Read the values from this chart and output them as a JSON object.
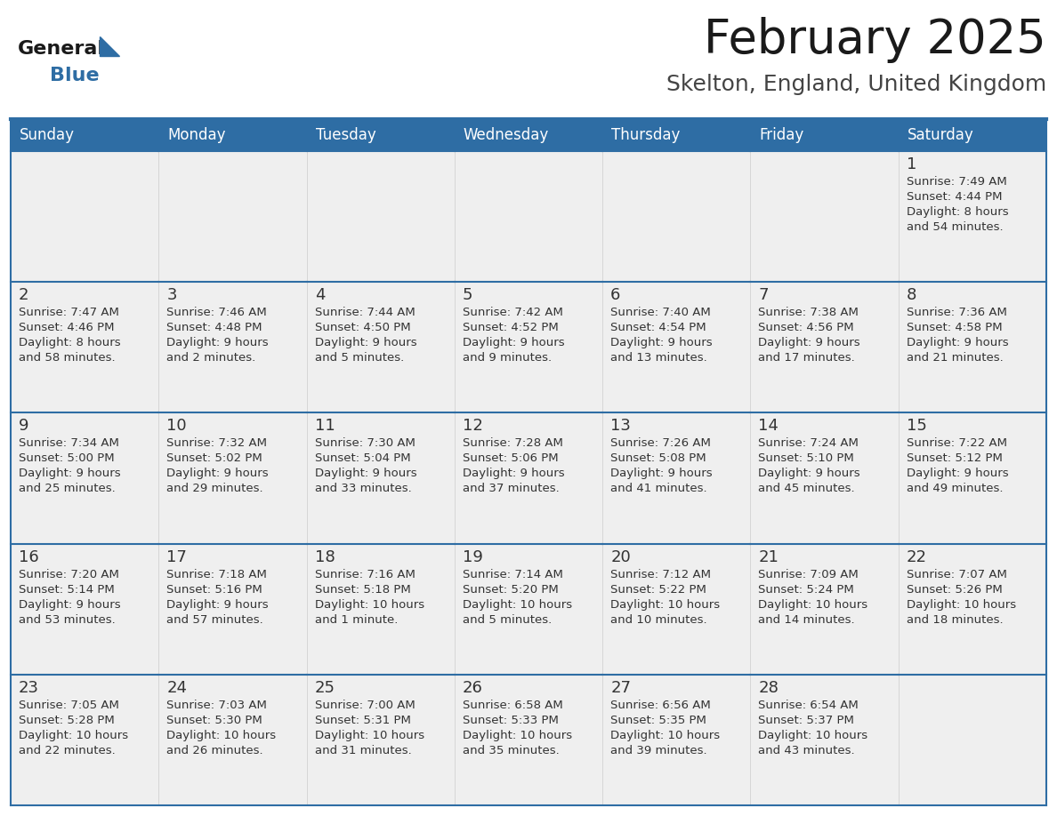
{
  "title": "February 2025",
  "subtitle": "Skelton, England, United Kingdom",
  "days_of_week": [
    "Sunday",
    "Monday",
    "Tuesday",
    "Wednesday",
    "Thursday",
    "Friday",
    "Saturday"
  ],
  "header_bg": "#2E6DA4",
  "header_text": "#FFFFFF",
  "cell_bg_light": "#EFEFEF",
  "cell_bg_white": "#FFFFFF",
  "cell_text": "#333333",
  "border_color": "#2E6DA4",
  "title_color": "#1A1A1A",
  "subtitle_color": "#444444",
  "logo_general_color": "#1A1A1A",
  "logo_blue_color": "#2E6DA4",
  "figsize": [
    11.88,
    9.18
  ],
  "dpi": 100,
  "calendar": [
    [
      null,
      null,
      null,
      null,
      null,
      null,
      1
    ],
    [
      2,
      3,
      4,
      5,
      6,
      7,
      8
    ],
    [
      9,
      10,
      11,
      12,
      13,
      14,
      15
    ],
    [
      16,
      17,
      18,
      19,
      20,
      21,
      22
    ],
    [
      23,
      24,
      25,
      26,
      27,
      28,
      null
    ]
  ],
  "cell_data": {
    "1": [
      "Sunrise: 7:49 AM",
      "Sunset: 4:44 PM",
      "Daylight: 8 hours",
      "and 54 minutes."
    ],
    "2": [
      "Sunrise: 7:47 AM",
      "Sunset: 4:46 PM",
      "Daylight: 8 hours",
      "and 58 minutes."
    ],
    "3": [
      "Sunrise: 7:46 AM",
      "Sunset: 4:48 PM",
      "Daylight: 9 hours",
      "and 2 minutes."
    ],
    "4": [
      "Sunrise: 7:44 AM",
      "Sunset: 4:50 PM",
      "Daylight: 9 hours",
      "and 5 minutes."
    ],
    "5": [
      "Sunrise: 7:42 AM",
      "Sunset: 4:52 PM",
      "Daylight: 9 hours",
      "and 9 minutes."
    ],
    "6": [
      "Sunrise: 7:40 AM",
      "Sunset: 4:54 PM",
      "Daylight: 9 hours",
      "and 13 minutes."
    ],
    "7": [
      "Sunrise: 7:38 AM",
      "Sunset: 4:56 PM",
      "Daylight: 9 hours",
      "and 17 minutes."
    ],
    "8": [
      "Sunrise: 7:36 AM",
      "Sunset: 4:58 PM",
      "Daylight: 9 hours",
      "and 21 minutes."
    ],
    "9": [
      "Sunrise: 7:34 AM",
      "Sunset: 5:00 PM",
      "Daylight: 9 hours",
      "and 25 minutes."
    ],
    "10": [
      "Sunrise: 7:32 AM",
      "Sunset: 5:02 PM",
      "Daylight: 9 hours",
      "and 29 minutes."
    ],
    "11": [
      "Sunrise: 7:30 AM",
      "Sunset: 5:04 PM",
      "Daylight: 9 hours",
      "and 33 minutes."
    ],
    "12": [
      "Sunrise: 7:28 AM",
      "Sunset: 5:06 PM",
      "Daylight: 9 hours",
      "and 37 minutes."
    ],
    "13": [
      "Sunrise: 7:26 AM",
      "Sunset: 5:08 PM",
      "Daylight: 9 hours",
      "and 41 minutes."
    ],
    "14": [
      "Sunrise: 7:24 AM",
      "Sunset: 5:10 PM",
      "Daylight: 9 hours",
      "and 45 minutes."
    ],
    "15": [
      "Sunrise: 7:22 AM",
      "Sunset: 5:12 PM",
      "Daylight: 9 hours",
      "and 49 minutes."
    ],
    "16": [
      "Sunrise: 7:20 AM",
      "Sunset: 5:14 PM",
      "Daylight: 9 hours",
      "and 53 minutes."
    ],
    "17": [
      "Sunrise: 7:18 AM",
      "Sunset: 5:16 PM",
      "Daylight: 9 hours",
      "and 57 minutes."
    ],
    "18": [
      "Sunrise: 7:16 AM",
      "Sunset: 5:18 PM",
      "Daylight: 10 hours",
      "and 1 minute."
    ],
    "19": [
      "Sunrise: 7:14 AM",
      "Sunset: 5:20 PM",
      "Daylight: 10 hours",
      "and 5 minutes."
    ],
    "20": [
      "Sunrise: 7:12 AM",
      "Sunset: 5:22 PM",
      "Daylight: 10 hours",
      "and 10 minutes."
    ],
    "21": [
      "Sunrise: 7:09 AM",
      "Sunset: 5:24 PM",
      "Daylight: 10 hours",
      "and 14 minutes."
    ],
    "22": [
      "Sunrise: 7:07 AM",
      "Sunset: 5:26 PM",
      "Daylight: 10 hours",
      "and 18 minutes."
    ],
    "23": [
      "Sunrise: 7:05 AM",
      "Sunset: 5:28 PM",
      "Daylight: 10 hours",
      "and 22 minutes."
    ],
    "24": [
      "Sunrise: 7:03 AM",
      "Sunset: 5:30 PM",
      "Daylight: 10 hours",
      "and 26 minutes."
    ],
    "25": [
      "Sunrise: 7:00 AM",
      "Sunset: 5:31 PM",
      "Daylight: 10 hours",
      "and 31 minutes."
    ],
    "26": [
      "Sunrise: 6:58 AM",
      "Sunset: 5:33 PM",
      "Daylight: 10 hours",
      "and 35 minutes."
    ],
    "27": [
      "Sunrise: 6:56 AM",
      "Sunset: 5:35 PM",
      "Daylight: 10 hours",
      "and 39 minutes."
    ],
    "28": [
      "Sunrise: 6:54 AM",
      "Sunset: 5:37 PM",
      "Daylight: 10 hours",
      "and 43 minutes."
    ]
  }
}
